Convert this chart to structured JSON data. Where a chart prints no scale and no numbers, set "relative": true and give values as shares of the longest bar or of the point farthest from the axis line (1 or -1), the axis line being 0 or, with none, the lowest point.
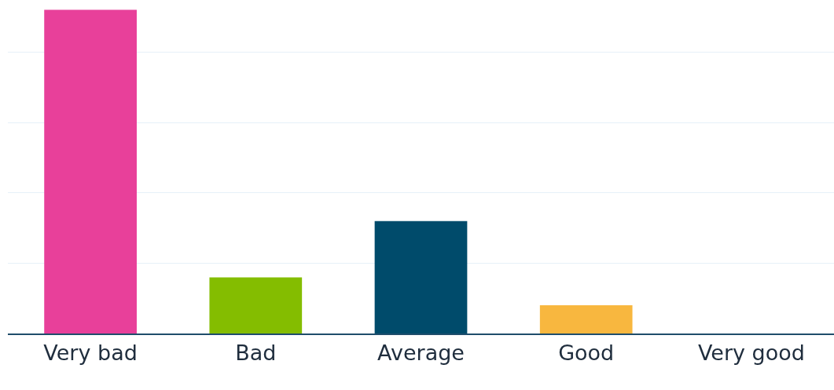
{
  "chart_data": {
    "type": "bar",
    "relative": true,
    "categories": [
      "Very bad",
      "Bad",
      "Average",
      "Good",
      "Very good"
    ],
    "values": [
      1,
      0.173,
      0.347,
      0.087,
      0
    ],
    "colors": [
      "#e8409a",
      "#84bd00",
      "#004b6b",
      "#f8b73f",
      "#f8b73f"
    ],
    "grid": "y"
  }
}
